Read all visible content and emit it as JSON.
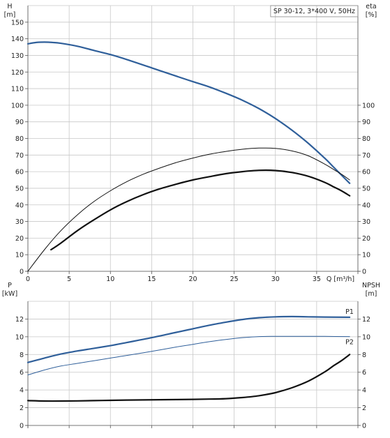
{
  "chart_data": [
    {
      "type": "line",
      "title": "SP 30-12, 3*400 V, 50Hz",
      "x_axis": {
        "label": "Q [m³/h]",
        "range": [
          0,
          40
        ],
        "ticks": [
          0,
          5,
          10,
          15,
          20,
          25,
          30,
          35
        ]
      },
      "y_left": {
        "label": "H",
        "unit": "[m]",
        "range": [
          0,
          160
        ],
        "ticks": [
          0,
          10,
          20,
          30,
          40,
          50,
          60,
          70,
          80,
          90,
          100,
          110,
          120,
          130,
          140,
          150
        ]
      },
      "y_right": {
        "label": "eta",
        "unit": "[%]",
        "range": [
          0,
          160
        ],
        "ticks": [
          0,
          10,
          20,
          30,
          40,
          50,
          60,
          70,
          80,
          90,
          100
        ]
      },
      "grid": true,
      "series": [
        {
          "axis": "left",
          "color": "#2f5f9a",
          "width": 2.2,
          "x": [
            0,
            1,
            2,
            3,
            4,
            6,
            8,
            10,
            12,
            15,
            18,
            20,
            22,
            24,
            26,
            28,
            30,
            32,
            34,
            36,
            37,
            38,
            39
          ],
          "y": [
            137,
            137.8,
            138,
            137.8,
            137.3,
            135.5,
            133,
            130.5,
            127.5,
            122.5,
            117.5,
            114.2,
            111,
            107.2,
            103,
            98,
            92,
            85,
            77,
            68,
            63,
            58,
            53
          ]
        },
        {
          "axis": "right",
          "color": "#111111",
          "width": 1,
          "x": [
            0,
            2,
            4,
            6,
            8,
            10,
            12,
            14,
            16,
            18,
            20,
            22,
            24,
            26,
            28,
            30,
            32,
            34,
            36,
            37,
            38,
            39
          ],
          "y": [
            0,
            13,
            24.5,
            34,
            42,
            48.5,
            54,
            58.5,
            62.2,
            65.5,
            68.2,
            70.5,
            72.2,
            73.5,
            74.2,
            74,
            72.5,
            69.5,
            64.5,
            61.5,
            58.5,
            55
          ]
        },
        {
          "axis": "right",
          "color": "#111111",
          "width": 2.2,
          "x": [
            2.8,
            4,
            6,
            8,
            10,
            12,
            14,
            16,
            18,
            20,
            22,
            24,
            26,
            28,
            30,
            32,
            34,
            36,
            37,
            38,
            39
          ],
          "y": [
            13,
            17,
            24.5,
            31,
            37,
            42,
            46.2,
            49.7,
            52.5,
            55,
            57,
            58.8,
            60,
            60.8,
            60.7,
            59.5,
            57.2,
            53.5,
            51,
            48.5,
            45.5
          ]
        }
      ]
    },
    {
      "type": "line",
      "x_axis": {
        "range": [
          0,
          40
        ],
        "ticks": [
          0,
          5,
          10,
          15,
          20,
          25,
          30,
          35
        ]
      },
      "y_left": {
        "label": "P",
        "unit": "[kW]",
        "range": [
          0,
          14
        ],
        "ticks": [
          0,
          2,
          4,
          6,
          8,
          10,
          12
        ]
      },
      "y_right": {
        "label": "NPSH",
        "unit": "[m]",
        "range": [
          0,
          14
        ],
        "ticks": [
          0,
          2,
          4,
          6,
          8,
          10,
          12
        ]
      },
      "grid": true,
      "series": [
        {
          "name": "P1",
          "axis": "left",
          "color": "#2f5f9a",
          "width": 2.2,
          "label_at": 39,
          "x": [
            0,
            2,
            4,
            6,
            8,
            10,
            12,
            15,
            18,
            20,
            22,
            24,
            26,
            28,
            30,
            32,
            34,
            36,
            39
          ],
          "y": [
            7.1,
            7.6,
            8.05,
            8.4,
            8.7,
            9,
            9.35,
            9.9,
            10.5,
            10.9,
            11.3,
            11.65,
            11.95,
            12.15,
            12.25,
            12.28,
            12.25,
            12.22,
            12.2
          ]
        },
        {
          "name": "P2",
          "axis": "left",
          "color": "#2f5f9a",
          "width": 1,
          "label_at": 39,
          "x": [
            0,
            2,
            4,
            6,
            8,
            10,
            12,
            15,
            18,
            20,
            22,
            24,
            26,
            28,
            30,
            32,
            34,
            36,
            39
          ],
          "y": [
            5.7,
            6.25,
            6.7,
            7,
            7.3,
            7.6,
            7.9,
            8.35,
            8.85,
            9.15,
            9.45,
            9.7,
            9.9,
            10.02,
            10.05,
            10.05,
            10.05,
            10.04,
            10.02
          ]
        },
        {
          "axis": "right",
          "color": "#111111",
          "width": 2.2,
          "x": [
            0,
            2,
            4,
            6,
            8,
            10,
            12,
            14,
            16,
            18,
            20,
            22,
            24,
            26,
            28,
            30,
            32,
            34,
            36,
            37,
            38,
            39
          ],
          "y": [
            2.8,
            2.75,
            2.75,
            2.77,
            2.8,
            2.83,
            2.86,
            2.88,
            2.9,
            2.92,
            2.94,
            2.97,
            3.02,
            3.15,
            3.35,
            3.7,
            4.25,
            5,
            6.05,
            6.7,
            7.3,
            8
          ]
        }
      ]
    }
  ]
}
